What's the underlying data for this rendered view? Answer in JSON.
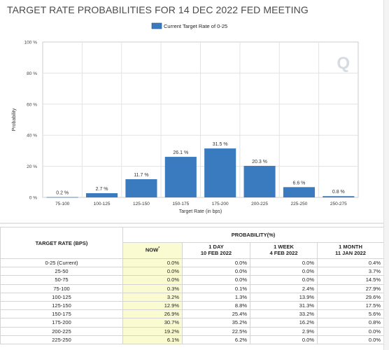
{
  "title": "TARGET RATE PROBABILITIES FOR 14 DEC 2022 FED MEETING",
  "chart_data": {
    "type": "bar",
    "legend": {
      "label": "Current Target Rate of 0-25",
      "position": "top-center"
    },
    "ylabel": "Probability",
    "xlabel": "Target Rate (in bps)",
    "ylim": [
      0,
      100
    ],
    "yticks": [
      "0 %",
      "20 %",
      "40 %",
      "60 %",
      "80 %",
      "100 %"
    ],
    "categories": [
      "75-100",
      "100-125",
      "125-150",
      "150-175",
      "175-200",
      "200-225",
      "225-250",
      "250-275"
    ],
    "values": [
      0.2,
      2.7,
      11.7,
      26.1,
      31.5,
      20.3,
      6.6,
      0.8
    ],
    "value_labels": [
      "0.2 %",
      "2.7 %",
      "11.7 %",
      "26.1 %",
      "31.5 %",
      "20.3 %",
      "6.6 %",
      "0.8 %"
    ],
    "grid": true,
    "bar_color": "#3a7bbf",
    "watermark": "Q"
  },
  "table": {
    "rate_header": "TARGET RATE (BPS)",
    "prob_header": "PROBABILITY(%)",
    "columns": [
      {
        "line1": "NOW",
        "sup": "*",
        "line2": ""
      },
      {
        "line1": "1 DAY",
        "line2": "10 FEB 2022"
      },
      {
        "line1": "1 WEEK",
        "line2": "4 FEB 2022"
      },
      {
        "line1": "1 MONTH",
        "line2": "11 JAN 2022"
      }
    ],
    "rows": [
      {
        "rate": "0-25 (Current)",
        "now": "0.0%",
        "day": "0.0%",
        "week": "0.0%",
        "month": "0.4%"
      },
      {
        "rate": "25-50",
        "now": "0.0%",
        "day": "0.0%",
        "week": "0.0%",
        "month": "3.7%"
      },
      {
        "rate": "50-75",
        "now": "0.0%",
        "day": "0.0%",
        "week": "0.0%",
        "month": "14.5%"
      },
      {
        "rate": "75-100",
        "now": "0.3%",
        "day": "0.1%",
        "week": "2.4%",
        "month": "27.9%"
      },
      {
        "rate": "100-125",
        "now": "3.2%",
        "day": "1.3%",
        "week": "13.9%",
        "month": "29.6%"
      },
      {
        "rate": "125-150",
        "now": "12.9%",
        "day": "8.8%",
        "week": "31.3%",
        "month": "17.5%"
      },
      {
        "rate": "150-175",
        "now": "26.9%",
        "day": "25.4%",
        "week": "33.2%",
        "month": "5.6%"
      },
      {
        "rate": "175-200",
        "now": "30.7%",
        "day": "35.2%",
        "week": "16.2%",
        "month": "0.8%"
      },
      {
        "rate": "200-225",
        "now": "19.2%",
        "day": "22.5%",
        "week": "2.9%",
        "month": "0.0%"
      },
      {
        "rate": "225-250",
        "now": "6.1%",
        "day": "6.2%",
        "week": "0.0%",
        "month": "0.0%"
      }
    ]
  }
}
